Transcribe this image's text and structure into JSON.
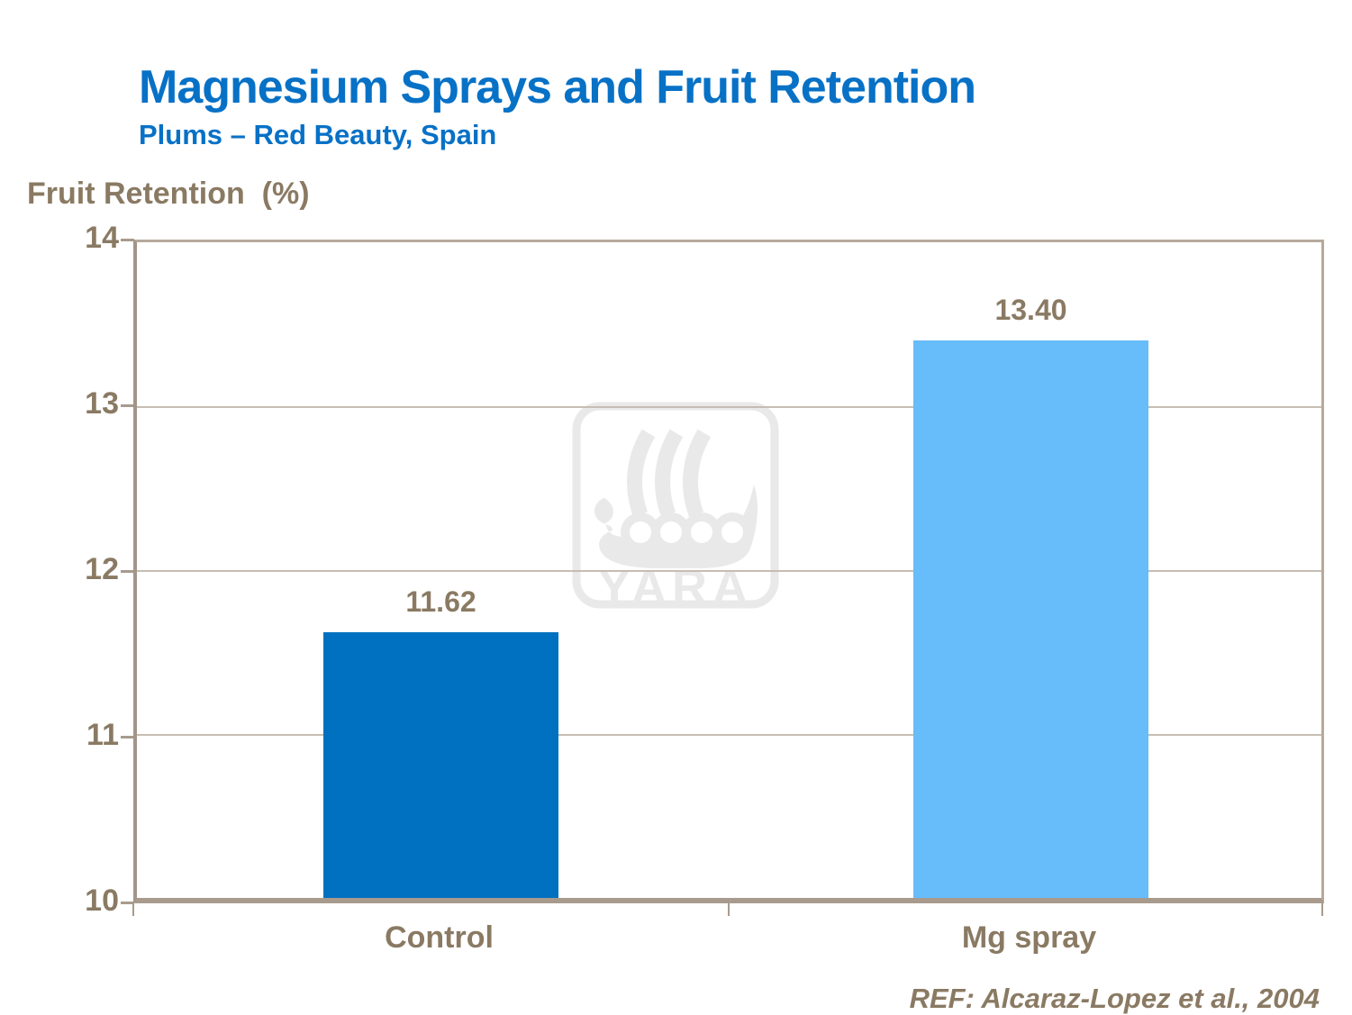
{
  "header": {
    "title": "Magnesium Sprays and Fruit Retention",
    "subtitle": "Plums – Red Beauty, Spain"
  },
  "chart_data": {
    "type": "bar",
    "title": "Magnesium Sprays and Fruit Retention",
    "subtitle": "Plums – Red Beauty, Spain",
    "ylabel": "Fruit Retention  (%)",
    "categories": [
      "Control",
      "Mg spray"
    ],
    "values": [
      11.62,
      13.4
    ],
    "value_labels": [
      "11.62",
      "13.40"
    ],
    "bar_colors": [
      "#0070C0",
      "#67BCFA"
    ],
    "ylim": [
      10,
      14
    ],
    "yticks": [
      "14",
      "13",
      "12",
      "11",
      "10"
    ],
    "grid": true,
    "legend_position": "none",
    "annotation": "REF: Alcaraz-Lopez et al., 2004"
  },
  "footer": {
    "reference": "REF: Alcaraz-Lopez et al., 2004"
  },
  "watermark": {
    "label": "YARA"
  },
  "colors": {
    "title_blue": "#0771C6",
    "text_brown": "#8A7A63",
    "bar_control": "#0070C0",
    "bar_mg_spray": "#67BCFA",
    "plot_border": "#B6AA9C",
    "axis": "#A89B8D",
    "gridline": "#C6BDB3",
    "watermark_gray": "#E9E9E9"
  }
}
